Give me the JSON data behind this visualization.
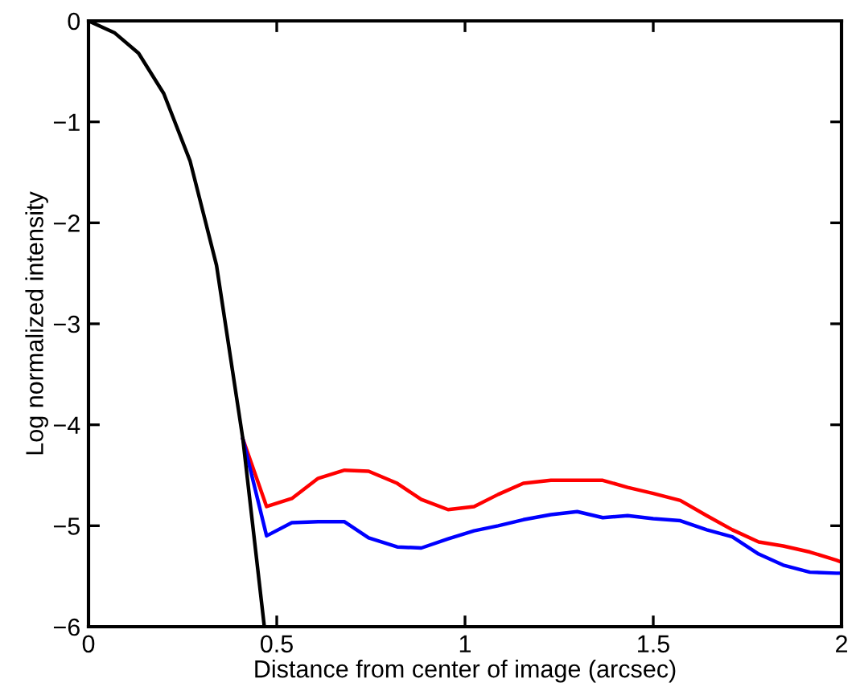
{
  "chart_data": {
    "type": "line",
    "xlabel": "Distance from center of image (arcsec)",
    "ylabel": "Log normalized intensity",
    "xlim": [
      0,
      2
    ],
    "ylim": [
      -6,
      0
    ],
    "xticks": [
      0,
      0.5,
      1,
      1.5,
      2
    ],
    "yticks": [
      {
        "value": -6,
        "label": "−6"
      },
      {
        "value": -5,
        "label": "−5"
      },
      {
        "value": -4,
        "label": "−4"
      },
      {
        "value": -3,
        "label": "−3"
      },
      {
        "value": -2,
        "label": "−2"
      },
      {
        "value": -1,
        "label": "−1"
      },
      0
    ],
    "grid": false,
    "marker": "none",
    "line_style": "solid",
    "series": [
      {
        "color": "#ff0000",
        "x": [
          0.41,
          0.473,
          0.54,
          0.61,
          0.68,
          0.744,
          0.82,
          0.884,
          0.955,
          1.024,
          1.088,
          1.155,
          1.228,
          1.298,
          1.366,
          1.432,
          1.5,
          1.572,
          1.642,
          1.71,
          1.78,
          1.845,
          1.916,
          1.986,
          2.0
        ],
        "values": [
          -4.14,
          -4.81,
          -4.73,
          -4.53,
          -4.45,
          -4.46,
          -4.58,
          -4.74,
          -4.84,
          -4.81,
          -4.69,
          -4.58,
          -4.55,
          -4.55,
          -4.55,
          -4.62,
          -4.68,
          -4.75,
          -4.9,
          -5.04,
          -5.16,
          -5.2,
          -5.26,
          -5.34,
          -5.36
        ]
      },
      {
        "color": "#0000ff",
        "x": [
          0.41,
          0.473,
          0.54,
          0.61,
          0.68,
          0.744,
          0.82,
          0.884,
          0.955,
          1.024,
          1.088,
          1.155,
          1.228,
          1.298,
          1.366,
          1.432,
          1.5,
          1.572,
          1.642,
          1.71,
          1.78,
          1.845,
          1.916,
          1.986,
          2.0
        ],
        "values": [
          -4.14,
          -5.1,
          -4.97,
          -4.96,
          -4.96,
          -5.12,
          -5.21,
          -5.22,
          -5.13,
          -5.05,
          -5.0,
          -4.94,
          -4.89,
          -4.86,
          -4.92,
          -4.9,
          -4.93,
          -4.95,
          -5.04,
          -5.11,
          -5.28,
          -5.39,
          -5.46,
          -5.47,
          -5.47
        ]
      },
      {
        "color": "#000000",
        "x": [
          0,
          0.07,
          0.133,
          0.2,
          0.27,
          0.34,
          0.41,
          0.467
        ],
        "values": [
          0,
          -0.12,
          -0.32,
          -0.72,
          -1.39,
          -2.42,
          -4.14,
          -6.0
        ]
      }
    ]
  }
}
